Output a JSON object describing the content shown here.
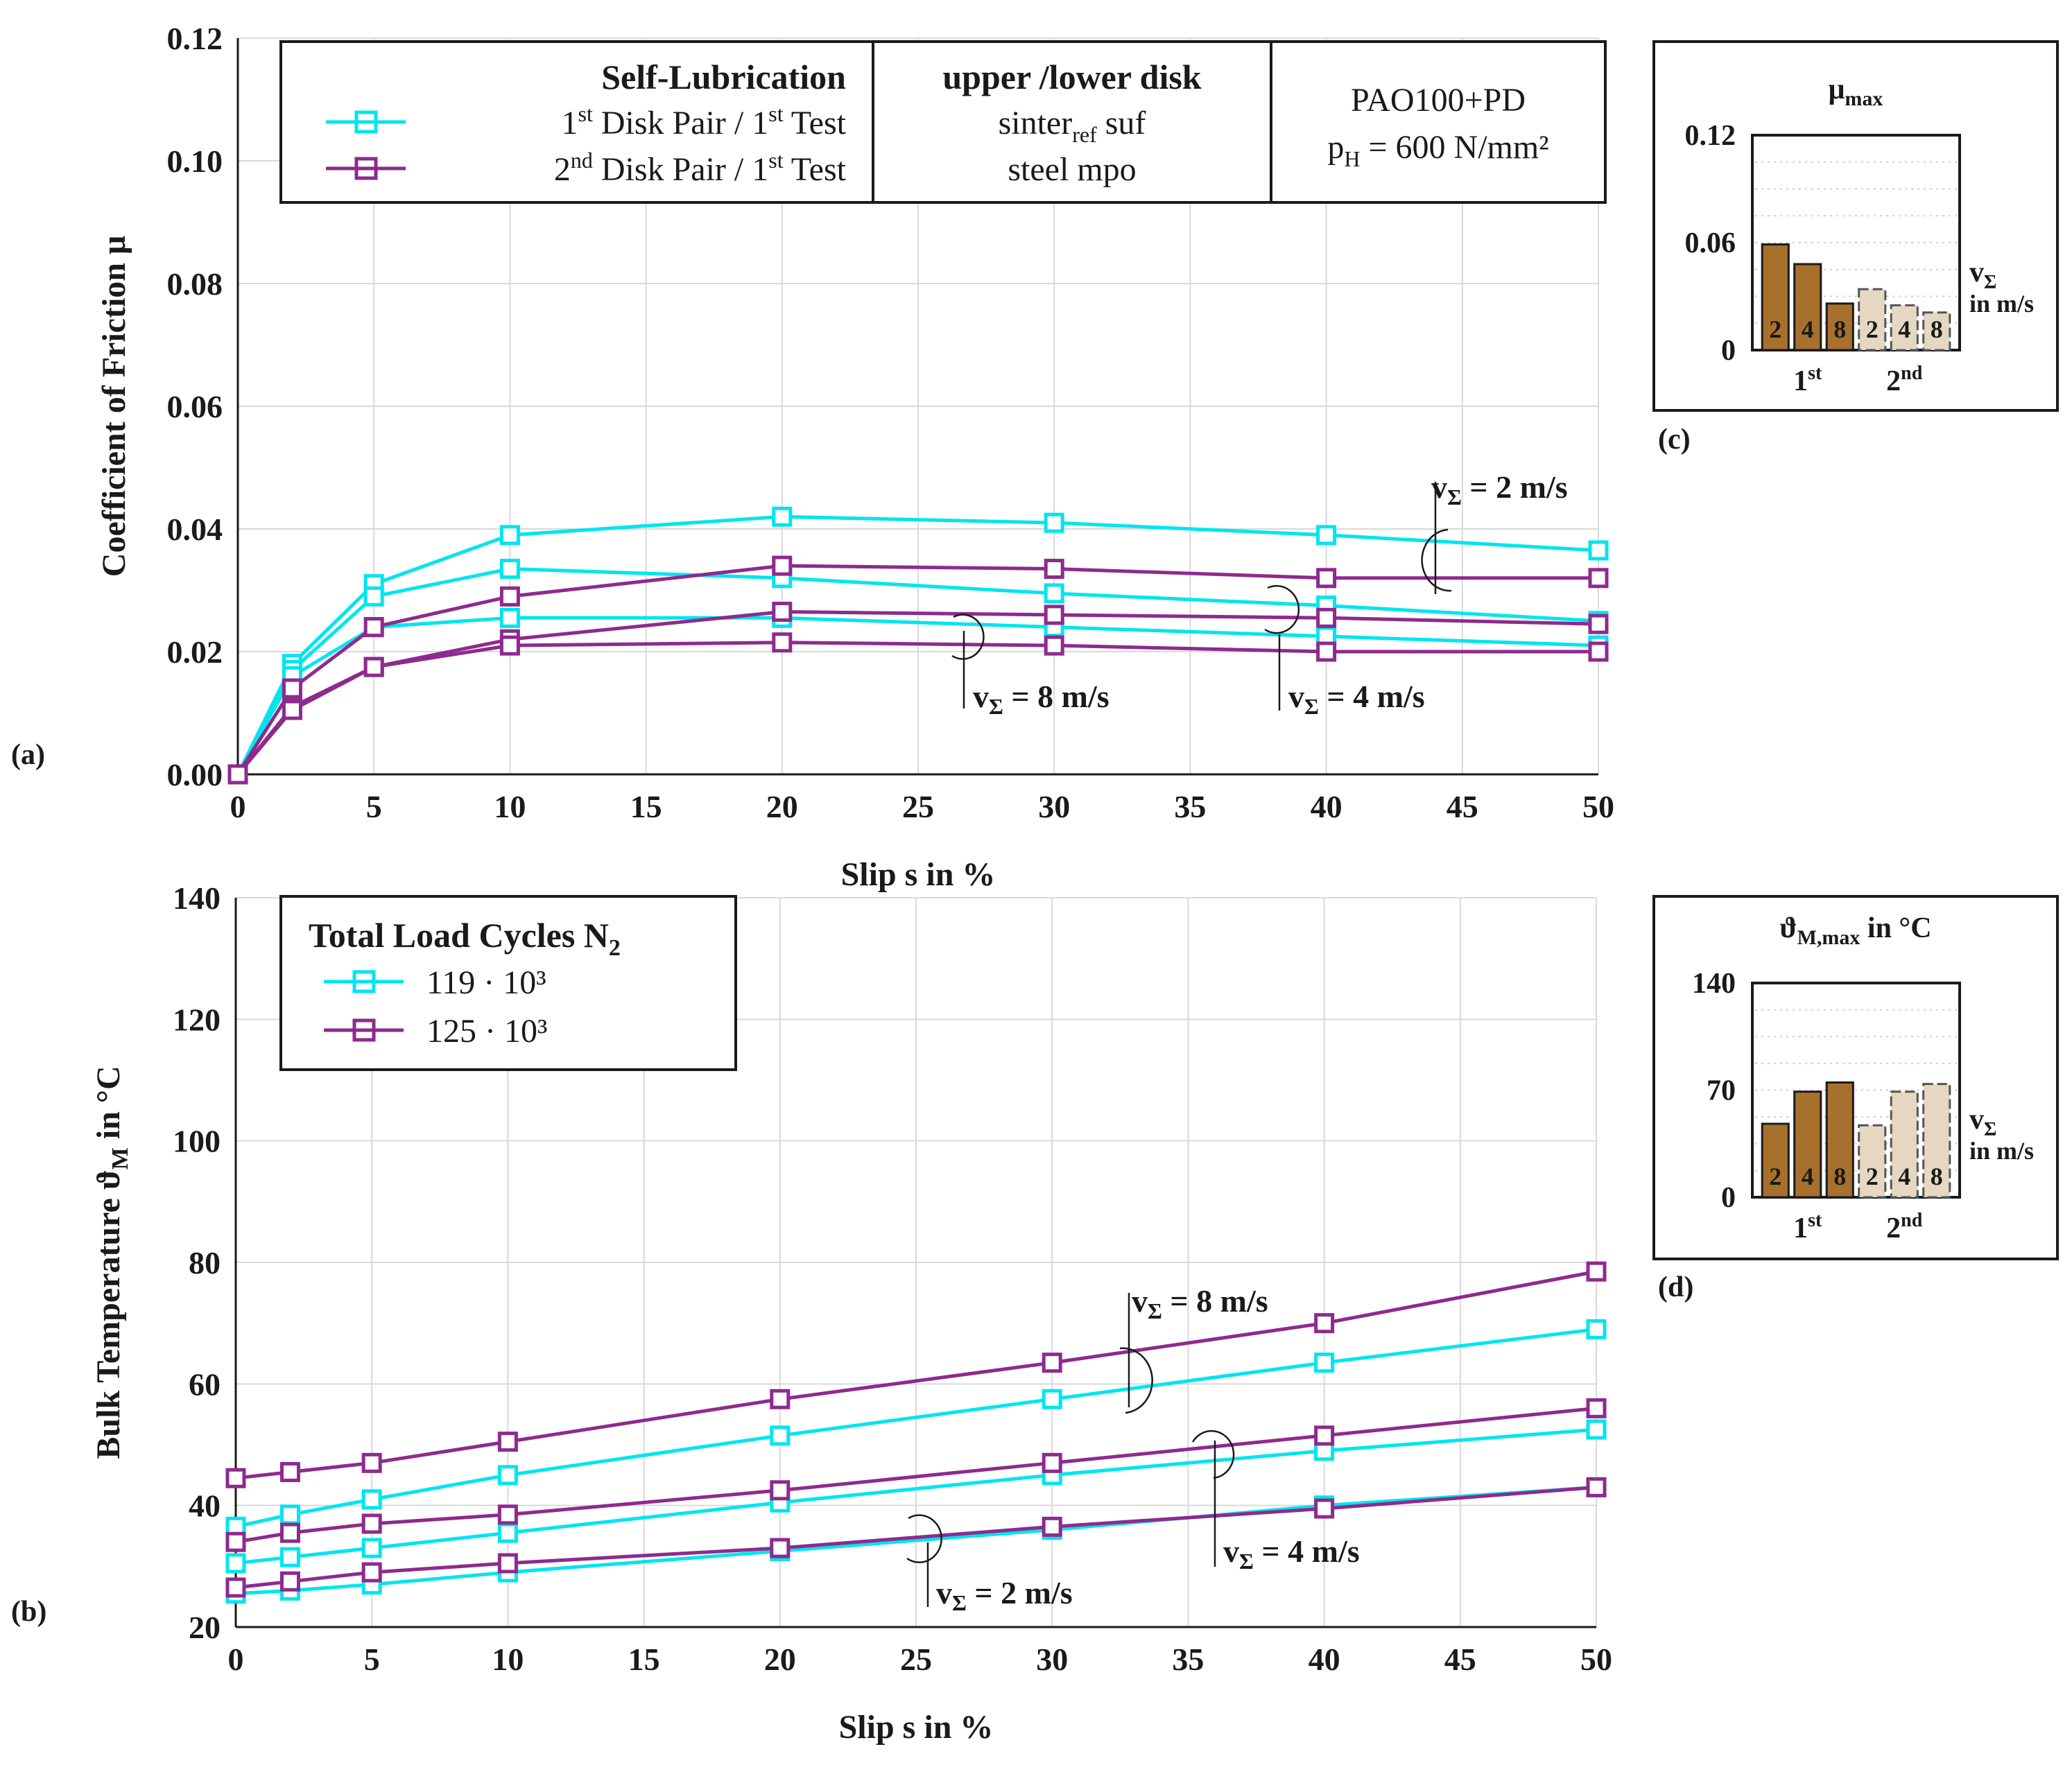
{
  "colors": {
    "first_pair": "#00e5ee",
    "second_pair": "#8e2a8e",
    "bar_first": "#a8702d",
    "bar_second": "#e6d7c3"
  },
  "panels": {
    "a": "(a)",
    "b": "(b)",
    "c": "(c)",
    "d": "(d)"
  },
  "legend_a": {
    "title": "Self-Lubrication",
    "series1": {
      "base": "1",
      "sup": "st",
      "text": " Disk Pair / 1",
      "sup2": "st",
      "text2": " Test"
    },
    "series2": {
      "base": "2",
      "sup": "nd",
      "text": " Disk Pair / 1",
      "sup2": "st",
      "text2": " Test"
    },
    "col2_title": "upper /lower disk",
    "col2_line1_a": "sinter",
    "col2_line1_sub": "ref",
    "col2_line1_b": " suf",
    "col2_line2": "steel mpo",
    "col3_line1": "PAO100+PD",
    "col3_line2_a": "p",
    "col3_line2_sub": "H",
    "col3_line2_b": " = 600 N/mm²"
  },
  "legend_b": {
    "title_a": "Total Load Cycles N",
    "title_sub": "2",
    "series1": "119 · 10³",
    "series2": "125 · 10³"
  },
  "annotations_a": [
    {
      "v": "v",
      "sub": "Σ",
      "rest": " = 2 m/s"
    },
    {
      "v": "v",
      "sub": "Σ",
      "rest": " = 8 m/s"
    },
    {
      "v": "v",
      "sub": "Σ",
      "rest": " = 4 m/s"
    }
  ],
  "annotations_b": [
    {
      "v": "v",
      "sub": "Σ",
      "rest": " = 8 m/s"
    },
    {
      "v": "v",
      "sub": "Σ",
      "rest": " = 4 m/s"
    },
    {
      "v": "v",
      "sub": "Σ",
      "rest": " = 2 m/s"
    }
  ],
  "chart_data": [
    {
      "id": "a",
      "type": "line",
      "xlabel": "Slip s in %",
      "ylabel": "Coefficient of Friction μ",
      "xlim": [
        0,
        50
      ],
      "ylim": [
        0,
        0.12
      ],
      "xticks": [
        "0",
        "5",
        "10",
        "15",
        "20",
        "25",
        "30",
        "35",
        "40",
        "45",
        "50"
      ],
      "yticks": [
        "0.00",
        "0.02",
        "0.04",
        "0.06",
        "0.08",
        "0.10",
        "0.12"
      ],
      "x": [
        0,
        2,
        5,
        10,
        20,
        30,
        40,
        50
      ],
      "series": [
        {
          "name": "1st Disk Pair / 1st Test, vΣ = 2 m/s",
          "pair": 1,
          "values": [
            0,
            0.018,
            0.031,
            0.039,
            0.042,
            0.041,
            0.039,
            0.0365
          ]
        },
        {
          "name": "1st Disk Pair / 1st Test, vΣ = 4 m/s",
          "pair": 1,
          "values": [
            0,
            0.017,
            0.029,
            0.0335,
            0.032,
            0.0295,
            0.0275,
            0.025
          ]
        },
        {
          "name": "1st Disk Pair / 1st Test, vΣ = 8 m/s",
          "pair": 1,
          "values": [
            0,
            0.016,
            0.024,
            0.0255,
            0.0255,
            0.024,
            0.0225,
            0.021
          ]
        },
        {
          "name": "2nd Disk Pair / 1st Test, vΣ = 2 m/s",
          "pair": 2,
          "values": [
            0,
            0.014,
            0.024,
            0.029,
            0.034,
            0.0335,
            0.032,
            0.032
          ]
        },
        {
          "name": "2nd Disk Pair / 1st Test, vΣ = 4 m/s",
          "pair": 2,
          "values": [
            0,
            0.011,
            0.0175,
            0.022,
            0.0265,
            0.026,
            0.0255,
            0.0245
          ]
        },
        {
          "name": "2nd Disk Pair / 1st Test, vΣ = 8 m/s",
          "pair": 2,
          "values": [
            0,
            0.0105,
            0.0175,
            0.021,
            0.0215,
            0.021,
            0.02,
            0.02
          ]
        }
      ]
    },
    {
      "id": "b",
      "type": "line",
      "xlabel": "Slip s in %",
      "ylabel": "Bulk Temperature ϑ",
      "ylabel_sub": "M",
      "ylabel_rest": " in °C",
      "xlim": [
        0,
        50
      ],
      "ylim": [
        20,
        140
      ],
      "xticks": [
        "0",
        "5",
        "10",
        "15",
        "20",
        "25",
        "30",
        "35",
        "40",
        "45",
        "50"
      ],
      "yticks": [
        "20",
        "40",
        "60",
        "80",
        "100",
        "120",
        "140"
      ],
      "x": [
        0,
        2,
        5,
        10,
        20,
        30,
        40,
        50
      ],
      "series": [
        {
          "name": "119 · 10³, vΣ = 8 m/s",
          "pair": 1,
          "values": [
            36.5,
            38.5,
            41,
            45,
            51.5,
            57.5,
            63.5,
            69
          ]
        },
        {
          "name": "119 · 10³, vΣ = 4 m/s",
          "pair": 1,
          "values": [
            30.5,
            31.5,
            33,
            35.5,
            40.5,
            45,
            49,
            52.5
          ]
        },
        {
          "name": "119 · 10³, vΣ = 2 m/s",
          "pair": 1,
          "values": [
            25.5,
            26,
            27,
            29,
            32.5,
            36,
            40,
            43
          ]
        },
        {
          "name": "125 · 10³, vΣ = 8 m/s",
          "pair": 2,
          "values": [
            44.5,
            45.5,
            47,
            50.5,
            57.5,
            63.5,
            70,
            78.5
          ]
        },
        {
          "name": "125 · 10³, vΣ = 4 m/s",
          "pair": 2,
          "values": [
            34,
            35.5,
            37,
            38.5,
            42.5,
            47,
            51.5,
            56
          ]
        },
        {
          "name": "125 · 10³, vΣ = 2 m/s",
          "pair": 2,
          "values": [
            26.5,
            27.5,
            29,
            30.5,
            33,
            36.5,
            39.5,
            43
          ]
        }
      ]
    },
    {
      "id": "c",
      "type": "bar",
      "title": "μ",
      "title_sub": "max",
      "ylim": [
        0,
        0.12
      ],
      "yticks": [
        "0",
        "0.06",
        "0.12"
      ],
      "groups": [
        "1",
        "2"
      ],
      "group_sups": [
        "st",
        "nd"
      ],
      "bar_labels": [
        "2",
        "4",
        "8",
        "2",
        "4",
        "8"
      ],
      "values": [
        0.059,
        0.048,
        0.026,
        0.034,
        0.025,
        0.021
      ],
      "legend_v": "v",
      "legend_sub": "Σ",
      "legend_unit": "in m/s"
    },
    {
      "id": "d",
      "type": "bar",
      "title": "ϑ",
      "title_sub": "M,max",
      "title_rest": " in °C",
      "ylim": [
        0,
        140
      ],
      "yticks": [
        "0",
        "70",
        "140"
      ],
      "groups": [
        "1",
        "2"
      ],
      "group_sups": [
        "st",
        "nd"
      ],
      "bar_labels": [
        "2",
        "4",
        "8",
        "2",
        "4",
        "8"
      ],
      "values": [
        48,
        69,
        75,
        47,
        69,
        74
      ],
      "legend_v": "v",
      "legend_sub": "Σ",
      "legend_unit": "in m/s"
    }
  ]
}
